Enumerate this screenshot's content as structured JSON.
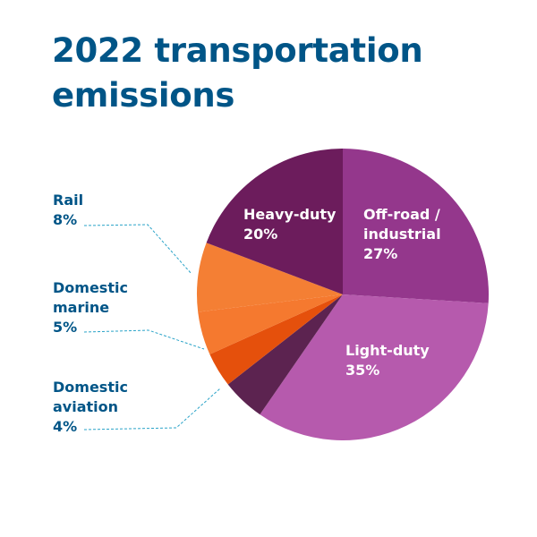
{
  "title": "2022 transportation emissions",
  "chart_data": {
    "type": "pie",
    "title": "2022 transportation emissions",
    "slices": [
      {
        "label": "Off-road / industrial",
        "label_lines": [
          "Off-road /",
          "industrial"
        ],
        "value": 27,
        "display": "27%",
        "color": "#94378c",
        "label_style": "inside"
      },
      {
        "label": "Light-duty",
        "label_lines": [
          "Light-duty"
        ],
        "value": 35,
        "display": "35%",
        "color": "#b65aad",
        "label_style": "inside"
      },
      {
        "label": "",
        "label_lines": [],
        "value": 5,
        "display": "",
        "color": "#5c2350",
        "label_style": "none"
      },
      {
        "label": "Domestic aviation",
        "label_lines": [
          "Domestic",
          "aviation"
        ],
        "value": 4,
        "display": "4%",
        "color": "#e5500c",
        "label_style": "callout"
      },
      {
        "label": "Domestic marine",
        "label_lines": [
          "Domestic",
          "marine"
        ],
        "value": 5,
        "display": "5%",
        "color": "#f5792f",
        "label_style": "callout"
      },
      {
        "label": "Rail",
        "label_lines": [
          "Rail"
        ],
        "value": 8,
        "display": "8%",
        "color": "#f47f34",
        "label_style": "callout"
      },
      {
        "label": "Heavy-duty",
        "label_lines": [
          "Heavy-duty"
        ],
        "value": 20,
        "display": "20%",
        "color": "#6c1c5c",
        "label_style": "inside"
      }
    ],
    "start_angle_deg": 0,
    "direction": "clockwise",
    "legend": "none"
  }
}
